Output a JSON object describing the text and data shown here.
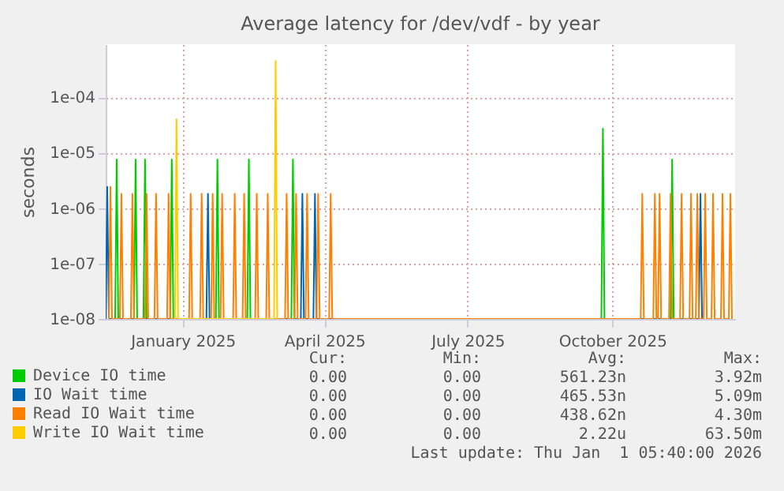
{
  "chart_data": {
    "type": "line",
    "title": "Average latency for /dev/vdf - by year",
    "ylabel": "seconds",
    "log": "y",
    "grid": true,
    "legend": "bottom left",
    "xlim": [
      "2024-11-27",
      "2026-01-01"
    ],
    "xticks": [
      {
        "value": "2025-01-15",
        "label": "January 2025"
      },
      {
        "value": "2025-04-15",
        "label": "April 2025"
      },
      {
        "value": "2025-07-15",
        "label": "July 2025"
      },
      {
        "value": "2025-10-15",
        "label": "October 2025"
      }
    ],
    "ylim": [
      1e-08,
      0.0009
    ],
    "yticks": [
      {
        "value": 1e-08,
        "label": "1e-08"
      },
      {
        "value": 1e-07,
        "label": "1e-07"
      },
      {
        "value": 1e-06,
        "label": "1e-06"
      },
      {
        "value": 1e-05,
        "label": "1e-05"
      },
      {
        "value": 0.0001,
        "label": "1e-04"
      }
    ],
    "series": [
      {
        "name": "Device IO time",
        "color": "#00cc00",
        "x": [
          "2024-12-03",
          "2024-12-04",
          "2024-12-05",
          "2024-12-15",
          "2024-12-16",
          "2024-12-17",
          "2024-12-21",
          "2024-12-22",
          "2024-12-23",
          "2025-01-07",
          "2025-01-08",
          "2025-01-09",
          "2025-02-05",
          "2025-02-06",
          "2025-02-07",
          "2025-02-25",
          "2025-02-26",
          "2025-02-27",
          "2025-03-25",
          "2025-03-26",
          "2025-03-27",
          "2025-10-08",
          "2025-10-09",
          "2025-10-10",
          "2025-11-21",
          "2025-11-22",
          "2025-11-23"
        ],
        "values": [
          1e-08,
          7.5e-06,
          1e-08,
          1e-08,
          7.5e-06,
          1e-08,
          1e-08,
          7.5e-06,
          1e-08,
          1e-08,
          7.5e-06,
          1e-08,
          1e-08,
          7.5e-06,
          1e-08,
          1e-08,
          7.5e-06,
          1e-08,
          1e-08,
          7.5e-06,
          1e-08,
          1e-08,
          2.7e-05,
          1e-08,
          1e-08,
          7.5e-06,
          1e-08
        ]
      },
      {
        "name": "IO Wait time",
        "color": "#0066b3",
        "x": [
          "2024-11-27",
          "2024-11-28",
          "2024-11-29",
          "2025-01-30",
          "2025-01-31",
          "2025-02-01",
          "2025-03-31",
          "2025-04-01",
          "2025-04-02",
          "2025-04-08",
          "2025-04-09",
          "2025-04-10",
          "2025-12-09",
          "2025-12-10",
          "2025-12-11"
        ],
        "values": [
          1e-08,
          2.4e-06,
          1e-08,
          1e-08,
          1.8e-06,
          1e-08,
          1e-08,
          1.8e-06,
          1e-08,
          1e-08,
          1.8e-06,
          1e-08,
          1e-08,
          1.8e-06,
          1e-08
        ]
      },
      {
        "name": "Read IO Wait time",
        "color": "#ff8000",
        "x": [
          "2024-11-29",
          "2024-11-30",
          "2024-12-01",
          "2024-12-06",
          "2024-12-07",
          "2024-12-08",
          "2024-12-13",
          "2024-12-14",
          "2024-12-15",
          "2024-12-22",
          "2024-12-23",
          "2024-12-24",
          "2024-12-28",
          "2024-12-29",
          "2024-12-30",
          "2025-01-05",
          "2025-01-06",
          "2025-01-07",
          "2025-01-19",
          "2025-01-20",
          "2025-01-21",
          "2025-01-26",
          "2025-01-27",
          "2025-01-28",
          "2025-02-02",
          "2025-02-03",
          "2025-02-04",
          "2025-02-08",
          "2025-02-09",
          "2025-02-10",
          "2025-02-16",
          "2025-02-17",
          "2025-02-18",
          "2025-02-22",
          "2025-02-23",
          "2025-02-24",
          "2025-03-02",
          "2025-03-03",
          "2025-03-04",
          "2025-03-09",
          "2025-03-10",
          "2025-03-11",
          "2025-03-21",
          "2025-03-22",
          "2025-03-23",
          "2025-03-27",
          "2025-03-28",
          "2025-03-29",
          "2025-04-03",
          "2025-04-04",
          "2025-04-05",
          "2025-04-10",
          "2025-04-11",
          "2025-04-12",
          "2025-04-18",
          "2025-04-19",
          "2025-04-20",
          "2025-11-02",
          "2025-11-03",
          "2025-11-04",
          "2025-11-10",
          "2025-11-11",
          "2025-11-12",
          "2025-11-13",
          "2025-11-14",
          "2025-11-15",
          "2025-11-20",
          "2025-11-21",
          "2025-11-22",
          "2025-11-27",
          "2025-11-28",
          "2025-11-29",
          "2025-12-03",
          "2025-12-04",
          "2025-12-05",
          "2025-12-07",
          "2025-12-08",
          "2025-12-09",
          "2025-12-12",
          "2025-12-13",
          "2025-12-14",
          "2025-12-17",
          "2025-12-18",
          "2025-12-19",
          "2025-12-23",
          "2025-12-24",
          "2025-12-25",
          "2025-12-28",
          "2025-12-29",
          "2025-12-30"
        ],
        "values": [
          1e-08,
          2.4e-06,
          1e-08,
          1e-08,
          1.8e-06,
          1e-08,
          1e-08,
          1.8e-06,
          1e-08,
          1e-08,
          1.8e-06,
          1e-08,
          1e-08,
          1.8e-06,
          1e-08,
          1e-08,
          1.8e-06,
          1e-08,
          1e-08,
          1.8e-06,
          1e-08,
          1e-08,
          1.8e-06,
          1e-08,
          1e-08,
          1.8e-06,
          1e-08,
          1e-08,
          1.8e-06,
          1e-08,
          1e-08,
          1.8e-06,
          1e-08,
          1e-08,
          1.8e-06,
          1e-08,
          1e-08,
          1.8e-06,
          1e-08,
          1e-08,
          1.8e-06,
          1e-08,
          1e-08,
          1.8e-06,
          1e-08,
          1e-08,
          1.8e-06,
          1e-08,
          1e-08,
          1.8e-06,
          1e-08,
          1e-08,
          1.8e-06,
          1e-08,
          1e-08,
          1.8e-06,
          1e-08,
          1e-08,
          1.8e-06,
          1e-08,
          1e-08,
          1.8e-06,
          1e-08,
          1e-08,
          1.8e-06,
          1e-08,
          1e-08,
          1.8e-06,
          1e-08,
          1e-08,
          1.8e-06,
          1e-08,
          1e-08,
          1.8e-06,
          1e-08,
          1e-08,
          1.8e-06,
          1e-08,
          1e-08,
          1.8e-06,
          1e-08,
          1e-08,
          1.8e-06,
          1e-08,
          1e-08,
          1.8e-06,
          1e-08,
          1e-08,
          1.8e-06,
          1e-08
        ]
      },
      {
        "name": "Write IO Wait time",
        "color": "#ffcc00",
        "x": [
          "2025-01-10",
          "2025-01-11",
          "2025-01-12",
          "2025-03-14",
          "2025-03-15",
          "2025-03-16"
        ],
        "values": [
          1e-08,
          4e-05,
          1e-08,
          1e-08,
          0.00045,
          1e-08
        ]
      }
    ],
    "annotations": [
      "Cur:",
      "Min:",
      "Avg:",
      "Max:",
      "0.00",
      "0.00",
      "561.23n",
      "3.92m",
      "0.00",
      "0.00",
      "465.53n",
      "5.09m",
      "0.00",
      "0.00",
      "438.62n",
      "4.30m",
      "0.00",
      "0.00",
      "2.22u",
      "63.50m",
      "Last update: Thu Jan  1 05:40:00 2026"
    ]
  }
}
